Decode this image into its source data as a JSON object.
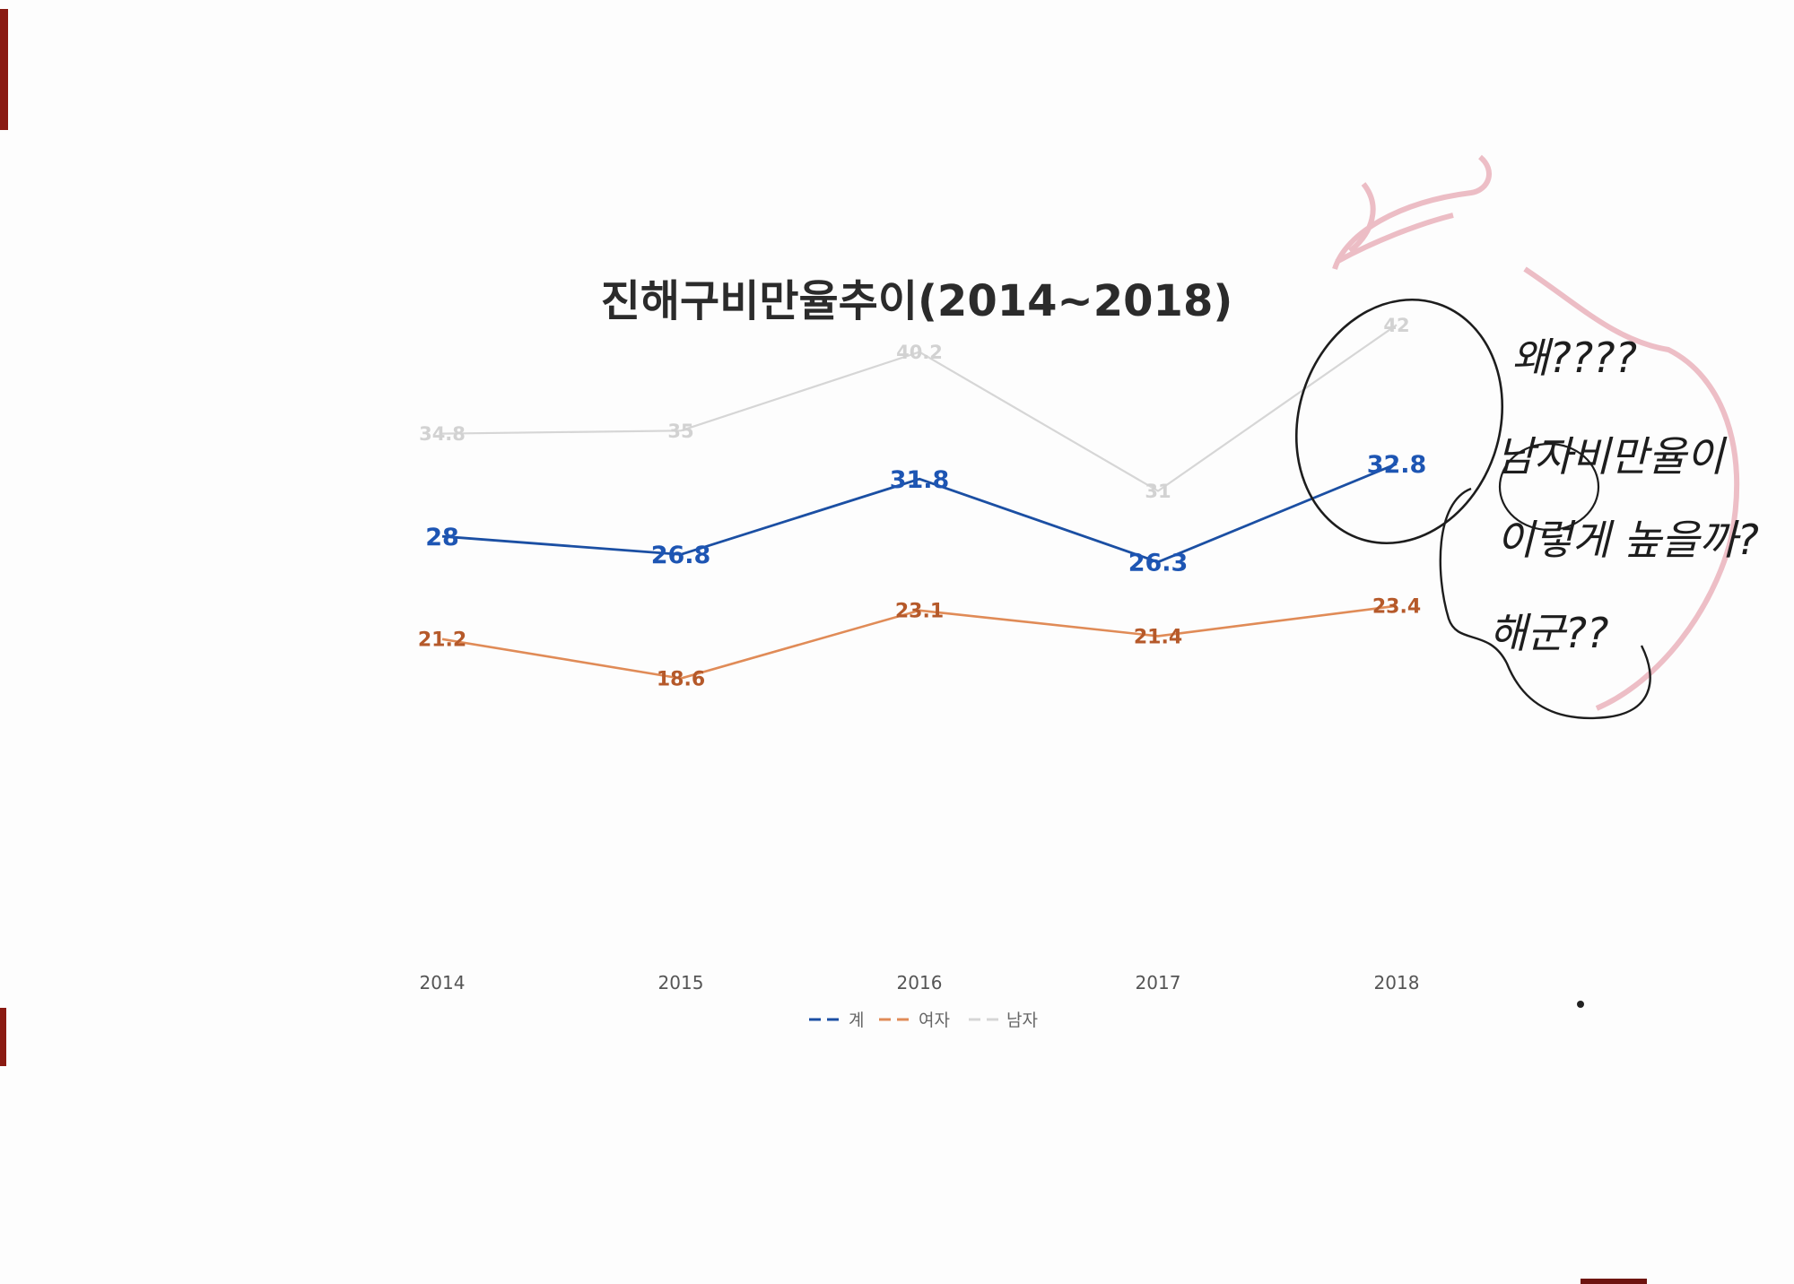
{
  "chart_data": {
    "type": "line",
    "title": "진해구비만율추이(2014~2018)",
    "categories": [
      "2014",
      "2015",
      "2016",
      "2017",
      "2018"
    ],
    "xlabel": "",
    "ylabel": "",
    "ylim": [
      0,
      45
    ],
    "grid": false,
    "legend": "bottom",
    "series": [
      {
        "name": "계",
        "values": [
          28,
          26.8,
          31.8,
          26.3,
          32.8
        ],
        "color": "#1b4fa3",
        "label_color": "#1d55b3",
        "label_size": 27,
        "stroke": 2.8
      },
      {
        "name": "여자",
        "values": [
          21.2,
          18.6,
          23.1,
          21.4,
          23.4
        ],
        "color": "#e08b57",
        "label_color": "#b5592a",
        "label_size": 22,
        "stroke": 2.6
      },
      {
        "name": "남자",
        "values": [
          34.8,
          35,
          40.2,
          31,
          42
        ],
        "color": "#d6d6d6",
        "label_color": "#d2d2d2",
        "label_size": 21,
        "stroke": 2.2
      }
    ],
    "data_labels": [
      [
        "28",
        "26.8",
        "31.8",
        "26.3",
        "32.8"
      ],
      [
        "21.2",
        "18.6",
        "23.1",
        "21.4",
        "23.4"
      ],
      [
        "34.8",
        "35",
        "40.2",
        "31",
        "42"
      ]
    ]
  },
  "annotation": {
    "line1": "왜????",
    "line2": "남자비만율이",
    "line3": "이렇게 높을까?",
    "line4": "해군??"
  },
  "colors": {
    "pen": "#1d1d1d",
    "red_mark": "#e3a2ad",
    "background": "#fdfdfd"
  }
}
